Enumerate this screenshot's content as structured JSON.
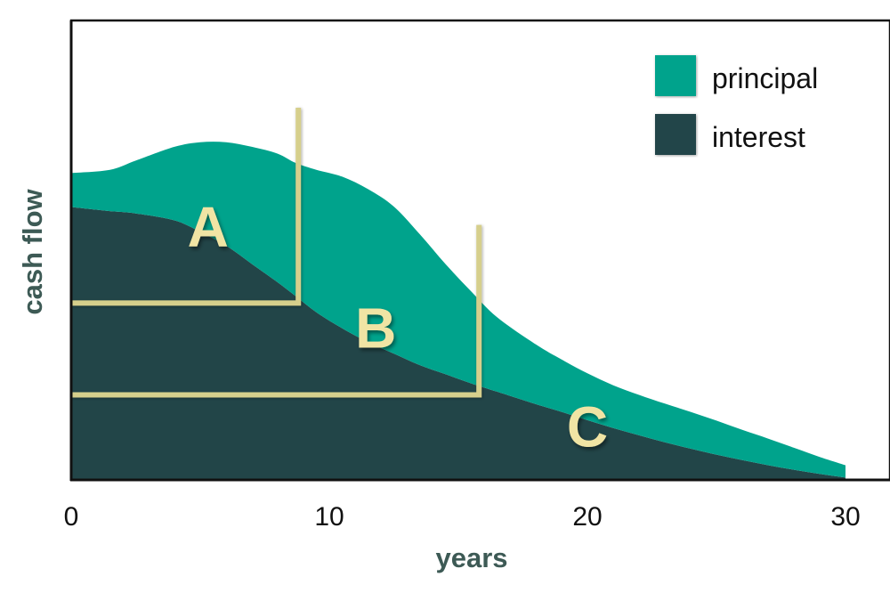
{
  "chart_data": {
    "type": "area",
    "stacked": true,
    "xlabel": "years",
    "ylabel": "cash flow",
    "xlim": [
      0,
      30
    ],
    "ylim": [
      0,
      1
    ],
    "x_ticks": [
      "0",
      "10",
      "20",
      "30"
    ],
    "y_ticks": [],
    "grid": false,
    "legend_position": "top-right",
    "x": [
      0,
      1.5,
      2.5,
      4,
      5,
      6,
      7,
      8,
      8.7,
      9.5,
      10.5,
      11.5,
      12.5,
      13.5,
      14.5,
      15.5,
      16.5,
      18,
      19,
      20,
      21,
      22,
      23,
      24,
      25,
      26,
      27,
      28,
      29,
      30
    ],
    "series": [
      {
        "name": "interest",
        "color": "#224548",
        "values": [
          0.594,
          0.585,
          0.58,
          0.565,
          0.54,
          0.51,
          0.47,
          0.43,
          0.4,
          0.365,
          0.33,
          0.3,
          0.275,
          0.25,
          0.23,
          0.21,
          0.192,
          0.165,
          0.148,
          0.13,
          0.113,
          0.097,
          0.082,
          0.068,
          0.055,
          0.043,
          0.032,
          0.022,
          0.013,
          0.005
        ]
      },
      {
        "name": "principal",
        "color": "#00a38c",
        "values": [
          0.074,
          0.09,
          0.115,
          0.16,
          0.195,
          0.225,
          0.255,
          0.28,
          0.29,
          0.31,
          0.33,
          0.333,
          0.32,
          0.285,
          0.24,
          0.2,
          0.162,
          0.13,
          0.114,
          0.102,
          0.093,
          0.088,
          0.084,
          0.08,
          0.074,
          0.066,
          0.058,
          0.048,
          0.037,
          0.027
        ]
      }
    ],
    "annotations": [
      {
        "label": "A",
        "x": 5.3,
        "y": 0.55
      },
      {
        "label": "B",
        "x": 11.8,
        "y": 0.33
      },
      {
        "label": "C",
        "x": 20,
        "y": 0.115
      }
    ],
    "brackets": [
      {
        "x_end": 8.8,
        "y_base": 0.385,
        "y_top": 0.81
      },
      {
        "x_end": 15.8,
        "y_base": 0.185,
        "y_top": 0.555
      }
    ],
    "bracket_color": "#d6cf8c",
    "label_color": "#f0e4a4"
  },
  "legend": {
    "principal": "principal",
    "interest": "interest"
  }
}
